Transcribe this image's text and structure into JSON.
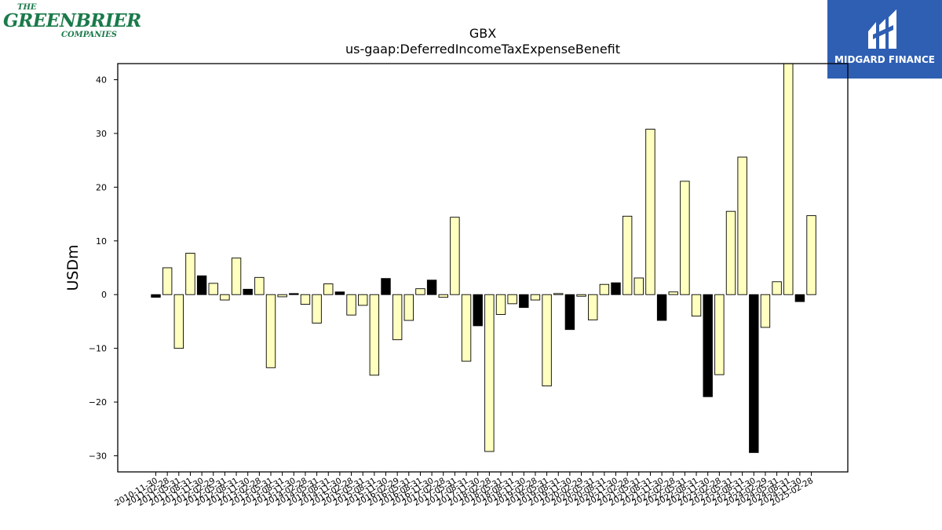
{
  "logos": {
    "company_top": "THE",
    "company_main": "GREENBRIER",
    "company_sub": "COMPANIES",
    "publisher": "MIDGARD FINANCE"
  },
  "chart_data": {
    "type": "bar",
    "title": "GBX",
    "subtitle": "us-gaap:DeferredIncomeTaxExpenseBenefit",
    "ylabel": "USDm",
    "xlabel": "",
    "ylim": [
      -33,
      43
    ],
    "yticks": [
      -30,
      -20,
      -10,
      0,
      10,
      20,
      30,
      40
    ],
    "grid": false,
    "colors": {
      "quarter": "#ffffc0",
      "annual": "#000000",
      "edge": "#000000"
    },
    "categories": [
      "2010-11-30",
      "2011-02-28",
      "2011-05-31",
      "2011-08-31",
      "2011-11-30",
      "2012-02-29",
      "2012-05-31",
      "2012-08-31",
      "2012-11-30",
      "2013-02-28",
      "2013-05-31",
      "2013-08-31",
      "2013-11-30",
      "2014-02-28",
      "2014-05-31",
      "2014-08-31",
      "2014-11-30",
      "2015-02-28",
      "2015-05-31",
      "2015-08-31",
      "2015-11-30",
      "2016-02-29",
      "2016-05-31",
      "2016-08-31",
      "2016-11-30",
      "2017-02-28",
      "2017-05-31",
      "2017-08-31",
      "2017-11-30",
      "2018-02-28",
      "2018-05-31",
      "2018-08-31",
      "2018-11-30",
      "2019-02-28",
      "2019-05-31",
      "2019-08-31",
      "2019-11-30",
      "2020-02-29",
      "2020-05-31",
      "2020-08-31",
      "2020-11-30",
      "2021-02-28",
      "2021-05-31",
      "2021-08-31",
      "2021-11-30",
      "2022-02-28",
      "2022-05-31",
      "2022-08-31",
      "2022-11-30",
      "2023-02-28",
      "2023-05-31",
      "2023-08-31",
      "2023-11-30",
      "2024-02-29",
      "2024-05-31",
      "2024-08-31",
      "2024-11-30",
      "2025-02-28"
    ],
    "values": [
      -0.5,
      5.0,
      -10.0,
      7.7,
      3.5,
      2.1,
      -1.0,
      6.8,
      1.0,
      3.2,
      -13.6,
      -0.4,
      0.2,
      -1.8,
      -5.3,
      2.0,
      0.5,
      -3.8,
      -2.0,
      -15.0,
      3.0,
      -8.4,
      -4.8,
      1.1,
      2.7,
      -0.5,
      14.4,
      -12.4,
      -5.8,
      -29.2,
      -3.7,
      -1.7,
      -2.4,
      -1.0,
      -17.0,
      0.2,
      -6.5,
      -0.3,
      -4.7,
      1.9,
      2.2,
      14.6,
      3.1,
      30.8,
      -4.8,
      0.5,
      21.1,
      -4.0,
      -19.0,
      -14.9,
      15.5,
      25.6,
      -29.4,
      -6.1,
      2.4,
      43.0,
      -1.3,
      14.7
    ],
    "annual": [
      true,
      false,
      false,
      false,
      true,
      false,
      false,
      false,
      true,
      false,
      false,
      false,
      true,
      false,
      false,
      false,
      true,
      false,
      false,
      false,
      true,
      false,
      false,
      false,
      true,
      false,
      false,
      false,
      true,
      false,
      false,
      false,
      true,
      false,
      false,
      false,
      true,
      false,
      false,
      false,
      true,
      false,
      false,
      false,
      true,
      false,
      false,
      false,
      true,
      false,
      false,
      false,
      true,
      false,
      false,
      false,
      true,
      false
    ]
  }
}
